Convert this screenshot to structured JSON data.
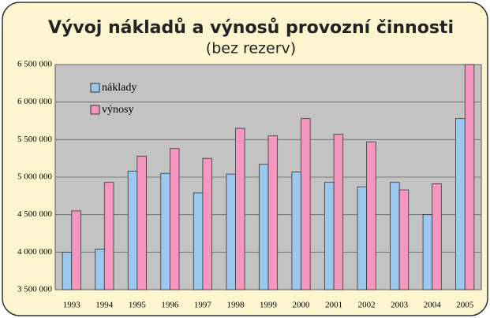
{
  "chart_data": {
    "type": "bar",
    "title": "Vývoj nákladů a výnosů provozní činnosti",
    "subtitle": "(bez rezerv)",
    "categories": [
      "1993",
      "1994",
      "1995",
      "1996",
      "1997",
      "1998",
      "1999",
      "2000",
      "2001",
      "2002",
      "2003",
      "2004",
      "2005"
    ],
    "series": [
      {
        "name": "náklady",
        "color": "#9dc8ee",
        "values": [
          4000000,
          4040000,
          5080000,
          5050000,
          4790000,
          5040000,
          5170000,
          5070000,
          4930000,
          4870000,
          4930000,
          4500000,
          5780000
        ]
      },
      {
        "name": "výnosy",
        "color": "#f597bf",
        "values": [
          4550000,
          4930000,
          5280000,
          5380000,
          5250000,
          5650000,
          5550000,
          5780000,
          5570000,
          5470000,
          4830000,
          4910000,
          6500000
        ]
      }
    ],
    "ylim": [
      3500000,
      6500000
    ],
    "yticks": [
      {
        "value": 3500000,
        "label": "3 500 000"
      },
      {
        "value": 4000000,
        "label": "4 000 000"
      },
      {
        "value": 4500000,
        "label": "4 500 000"
      },
      {
        "value": 5000000,
        "label": "5 000 000"
      },
      {
        "value": 5500000,
        "label": "5 500 000"
      },
      {
        "value": 6000000,
        "label": "6 000 000"
      },
      {
        "value": 6500000,
        "label": "6 500 000"
      }
    ],
    "grid": true,
    "legend": "top-left"
  }
}
